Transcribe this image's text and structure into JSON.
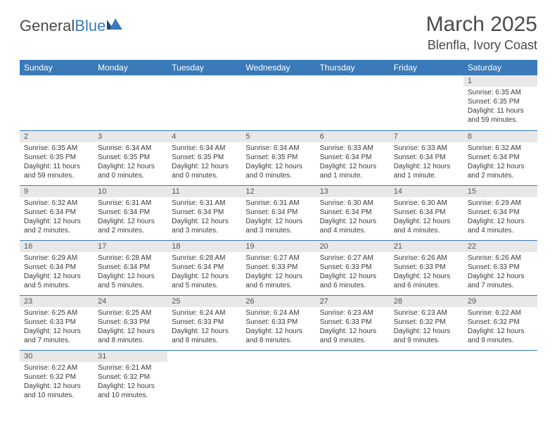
{
  "logo": {
    "text1": "General",
    "text2": "Blue"
  },
  "header": {
    "title": "March 2025",
    "location": "Blenfla, Ivory Coast"
  },
  "colors": {
    "header_bg": "#3a7ab8",
    "header_text": "#ffffff",
    "daynum_bg": "#e8e8e8",
    "border": "#3a7ab8",
    "text": "#3a3a3a",
    "title_text": "#4a4a4a"
  },
  "daynames": [
    "Sunday",
    "Monday",
    "Tuesday",
    "Wednesday",
    "Thursday",
    "Friday",
    "Saturday"
  ],
  "weeks": [
    [
      {
        "num": "",
        "sunrise": "",
        "sunset": "",
        "daylight": ""
      },
      {
        "num": "",
        "sunrise": "",
        "sunset": "",
        "daylight": ""
      },
      {
        "num": "",
        "sunrise": "",
        "sunset": "",
        "daylight": ""
      },
      {
        "num": "",
        "sunrise": "",
        "sunset": "",
        "daylight": ""
      },
      {
        "num": "",
        "sunrise": "",
        "sunset": "",
        "daylight": ""
      },
      {
        "num": "",
        "sunrise": "",
        "sunset": "",
        "daylight": ""
      },
      {
        "num": "1",
        "sunrise": "Sunrise: 6:35 AM",
        "sunset": "Sunset: 6:35 PM",
        "daylight": "Daylight: 11 hours and 59 minutes."
      }
    ],
    [
      {
        "num": "2",
        "sunrise": "Sunrise: 6:35 AM",
        "sunset": "Sunset: 6:35 PM",
        "daylight": "Daylight: 11 hours and 59 minutes."
      },
      {
        "num": "3",
        "sunrise": "Sunrise: 6:34 AM",
        "sunset": "Sunset: 6:35 PM",
        "daylight": "Daylight: 12 hours and 0 minutes."
      },
      {
        "num": "4",
        "sunrise": "Sunrise: 6:34 AM",
        "sunset": "Sunset: 6:35 PM",
        "daylight": "Daylight: 12 hours and 0 minutes."
      },
      {
        "num": "5",
        "sunrise": "Sunrise: 6:34 AM",
        "sunset": "Sunset: 6:35 PM",
        "daylight": "Daylight: 12 hours and 0 minutes."
      },
      {
        "num": "6",
        "sunrise": "Sunrise: 6:33 AM",
        "sunset": "Sunset: 6:34 PM",
        "daylight": "Daylight: 12 hours and 1 minute."
      },
      {
        "num": "7",
        "sunrise": "Sunrise: 6:33 AM",
        "sunset": "Sunset: 6:34 PM",
        "daylight": "Daylight: 12 hours and 1 minute."
      },
      {
        "num": "8",
        "sunrise": "Sunrise: 6:32 AM",
        "sunset": "Sunset: 6:34 PM",
        "daylight": "Daylight: 12 hours and 2 minutes."
      }
    ],
    [
      {
        "num": "9",
        "sunrise": "Sunrise: 6:32 AM",
        "sunset": "Sunset: 6:34 PM",
        "daylight": "Daylight: 12 hours and 2 minutes."
      },
      {
        "num": "10",
        "sunrise": "Sunrise: 6:31 AM",
        "sunset": "Sunset: 6:34 PM",
        "daylight": "Daylight: 12 hours and 2 minutes."
      },
      {
        "num": "11",
        "sunrise": "Sunrise: 6:31 AM",
        "sunset": "Sunset: 6:34 PM",
        "daylight": "Daylight: 12 hours and 3 minutes."
      },
      {
        "num": "12",
        "sunrise": "Sunrise: 6:31 AM",
        "sunset": "Sunset: 6:34 PM",
        "daylight": "Daylight: 12 hours and 3 minutes."
      },
      {
        "num": "13",
        "sunrise": "Sunrise: 6:30 AM",
        "sunset": "Sunset: 6:34 PM",
        "daylight": "Daylight: 12 hours and 4 minutes."
      },
      {
        "num": "14",
        "sunrise": "Sunrise: 6:30 AM",
        "sunset": "Sunset: 6:34 PM",
        "daylight": "Daylight: 12 hours and 4 minutes."
      },
      {
        "num": "15",
        "sunrise": "Sunrise: 6:29 AM",
        "sunset": "Sunset: 6:34 PM",
        "daylight": "Daylight: 12 hours and 4 minutes."
      }
    ],
    [
      {
        "num": "16",
        "sunrise": "Sunrise: 6:29 AM",
        "sunset": "Sunset: 6:34 PM",
        "daylight": "Daylight: 12 hours and 5 minutes."
      },
      {
        "num": "17",
        "sunrise": "Sunrise: 6:28 AM",
        "sunset": "Sunset: 6:34 PM",
        "daylight": "Daylight: 12 hours and 5 minutes."
      },
      {
        "num": "18",
        "sunrise": "Sunrise: 6:28 AM",
        "sunset": "Sunset: 6:34 PM",
        "daylight": "Daylight: 12 hours and 5 minutes."
      },
      {
        "num": "19",
        "sunrise": "Sunrise: 6:27 AM",
        "sunset": "Sunset: 6:33 PM",
        "daylight": "Daylight: 12 hours and 6 minutes."
      },
      {
        "num": "20",
        "sunrise": "Sunrise: 6:27 AM",
        "sunset": "Sunset: 6:33 PM",
        "daylight": "Daylight: 12 hours and 6 minutes."
      },
      {
        "num": "21",
        "sunrise": "Sunrise: 6:26 AM",
        "sunset": "Sunset: 6:33 PM",
        "daylight": "Daylight: 12 hours and 6 minutes."
      },
      {
        "num": "22",
        "sunrise": "Sunrise: 6:26 AM",
        "sunset": "Sunset: 6:33 PM",
        "daylight": "Daylight: 12 hours and 7 minutes."
      }
    ],
    [
      {
        "num": "23",
        "sunrise": "Sunrise: 6:25 AM",
        "sunset": "Sunset: 6:33 PM",
        "daylight": "Daylight: 12 hours and 7 minutes."
      },
      {
        "num": "24",
        "sunrise": "Sunrise: 6:25 AM",
        "sunset": "Sunset: 6:33 PM",
        "daylight": "Daylight: 12 hours and 8 minutes."
      },
      {
        "num": "25",
        "sunrise": "Sunrise: 6:24 AM",
        "sunset": "Sunset: 6:33 PM",
        "daylight": "Daylight: 12 hours and 8 minutes."
      },
      {
        "num": "26",
        "sunrise": "Sunrise: 6:24 AM",
        "sunset": "Sunset: 6:33 PM",
        "daylight": "Daylight: 12 hours and 8 minutes."
      },
      {
        "num": "27",
        "sunrise": "Sunrise: 6:23 AM",
        "sunset": "Sunset: 6:33 PM",
        "daylight": "Daylight: 12 hours and 9 minutes."
      },
      {
        "num": "28",
        "sunrise": "Sunrise: 6:23 AM",
        "sunset": "Sunset: 6:32 PM",
        "daylight": "Daylight: 12 hours and 9 minutes."
      },
      {
        "num": "29",
        "sunrise": "Sunrise: 6:22 AM",
        "sunset": "Sunset: 6:32 PM",
        "daylight": "Daylight: 12 hours and 9 minutes."
      }
    ],
    [
      {
        "num": "30",
        "sunrise": "Sunrise: 6:22 AM",
        "sunset": "Sunset: 6:32 PM",
        "daylight": "Daylight: 12 hours and 10 minutes."
      },
      {
        "num": "31",
        "sunrise": "Sunrise: 6:21 AM",
        "sunset": "Sunset: 6:32 PM",
        "daylight": "Daylight: 12 hours and 10 minutes."
      },
      {
        "num": "",
        "sunrise": "",
        "sunset": "",
        "daylight": ""
      },
      {
        "num": "",
        "sunrise": "",
        "sunset": "",
        "daylight": ""
      },
      {
        "num": "",
        "sunrise": "",
        "sunset": "",
        "daylight": ""
      },
      {
        "num": "",
        "sunrise": "",
        "sunset": "",
        "daylight": ""
      },
      {
        "num": "",
        "sunrise": "",
        "sunset": "",
        "daylight": ""
      }
    ]
  ]
}
